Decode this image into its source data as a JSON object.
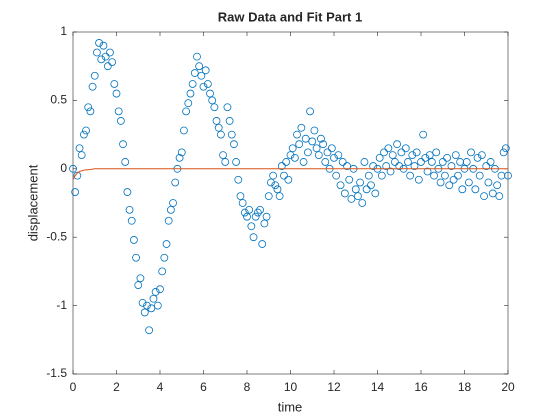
{
  "chart_data": {
    "type": "scatter",
    "title": "Raw Data and Fit Part 1",
    "xlabel": "time",
    "ylabel": "displacement",
    "xlim": [
      0,
      20
    ],
    "ylim": [
      -1.5,
      1
    ],
    "xticks": [
      0,
      2,
      4,
      6,
      8,
      10,
      12,
      14,
      16,
      18,
      20
    ],
    "yticks": [
      -1.5,
      -1,
      -0.5,
      0,
      0.5,
      1
    ],
    "series": [
      {
        "style": "markers",
        "color": "#0072bd",
        "x": [
          0,
          0.1,
          0.2,
          0.3,
          0.4,
          0.5,
          0.6,
          0.7,
          0.8,
          0.9,
          1,
          1.1,
          1.2,
          1.3,
          1.4,
          1.5,
          1.6,
          1.7,
          1.8,
          1.9,
          2,
          2.1,
          2.2,
          2.3,
          2.4,
          2.5,
          2.6,
          2.7,
          2.8,
          2.9,
          3,
          3.1,
          3.2,
          3.3,
          3.4,
          3.5,
          3.6,
          3.7,
          3.8,
          3.9,
          4,
          4.1,
          4.2,
          4.3,
          4.4,
          4.5,
          4.6,
          4.7,
          4.8,
          4.9,
          5,
          5.1,
          5.2,
          5.3,
          5.4,
          5.5,
          5.6,
          5.7,
          5.8,
          5.9,
          6,
          6.1,
          6.2,
          6.3,
          6.4,
          6.5,
          6.6,
          6.7,
          6.8,
          6.9,
          7,
          7.1,
          7.2,
          7.3,
          7.4,
          7.5,
          7.6,
          7.7,
          7.8,
          7.9,
          8,
          8.1,
          8.2,
          8.3,
          8.4,
          8.5,
          8.6,
          8.7,
          8.8,
          8.9,
          9,
          9.1,
          9.2,
          9.3,
          9.4,
          9.5,
          9.6,
          9.7,
          9.8,
          9.9,
          10,
          10.1,
          10.2,
          10.3,
          10.4,
          10.5,
          10.6,
          10.7,
          10.8,
          10.9,
          11,
          11.1,
          11.2,
          11.3,
          11.4,
          11.5,
          11.6,
          11.7,
          11.8,
          11.9,
          12,
          12.1,
          12.2,
          12.3,
          12.4,
          12.5,
          12.6,
          12.7,
          12.8,
          12.9,
          13,
          13.1,
          13.2,
          13.3,
          13.4,
          13.5,
          13.6,
          13.7,
          13.8,
          13.9,
          14,
          14.1,
          14.2,
          14.3,
          14.4,
          14.5,
          14.6,
          14.7,
          14.8,
          14.9,
          15,
          15.1,
          15.2,
          15.3,
          15.4,
          15.5,
          15.6,
          15.7,
          15.8,
          15.9,
          16,
          16.1,
          16.2,
          16.3,
          16.4,
          16.5,
          16.6,
          16.7,
          16.8,
          16.9,
          17,
          17.1,
          17.2,
          17.3,
          17.4,
          17.5,
          17.6,
          17.7,
          17.8,
          17.9,
          18,
          18.1,
          18.2,
          18.3,
          18.4,
          18.5,
          18.6,
          18.7,
          18.8,
          18.9,
          19,
          19.1,
          19.2,
          19.3,
          19.4,
          19.5,
          19.6,
          19.7,
          19.8,
          19.9,
          20
        ],
        "values": [
          0.0,
          -0.17,
          -0.05,
          0.15,
          0.1,
          0.25,
          0.28,
          0.45,
          0.42,
          0.6,
          0.68,
          0.85,
          0.92,
          0.8,
          0.9,
          0.82,
          0.75,
          0.85,
          0.78,
          0.62,
          0.55,
          0.42,
          0.35,
          0.18,
          0.05,
          -0.17,
          -0.3,
          -0.38,
          -0.52,
          -0.65,
          -0.85,
          -0.8,
          -0.98,
          -1.05,
          -1.0,
          -1.18,
          -1.02,
          -0.95,
          -0.9,
          -1.0,
          -0.88,
          -0.75,
          -0.65,
          -0.55,
          -0.38,
          -0.3,
          -0.25,
          -0.1,
          0.0,
          0.08,
          0.12,
          0.28,
          0.42,
          0.48,
          0.55,
          0.62,
          0.7,
          0.82,
          0.75,
          0.68,
          0.6,
          0.72,
          0.62,
          0.55,
          0.5,
          0.45,
          0.35,
          0.3,
          0.25,
          0.1,
          0.05,
          0.45,
          0.35,
          0.25,
          0.18,
          0.05,
          -0.08,
          -0.2,
          -0.25,
          -0.32,
          -0.35,
          -0.3,
          -0.42,
          -0.5,
          -0.35,
          -0.32,
          -0.3,
          -0.55,
          -0.4,
          -0.35,
          -0.2,
          -0.1,
          -0.05,
          -0.12,
          -0.15,
          -0.2,
          0.02,
          -0.05,
          0.05,
          -0.08,
          0.1,
          0.15,
          0.08,
          0.25,
          0.18,
          0.3,
          0.05,
          0.22,
          0.12,
          0.42,
          0.2,
          0.28,
          0.15,
          0.1,
          0.22,
          0.18,
          0.05,
          0.12,
          0.0,
          0.15,
          0.08,
          -0.05,
          0.1,
          -0.12,
          0.05,
          -0.18,
          0.02,
          -0.08,
          -0.22,
          0.0,
          -0.15,
          -0.2,
          -0.1,
          -0.25,
          0.05,
          -0.15,
          -0.05,
          -0.12,
          0.02,
          -0.18,
          0.0,
          0.08,
          -0.05,
          0.12,
          0.02,
          0.15,
          -0.02,
          0.1,
          0.05,
          0.18,
          0.02,
          0.12,
          0.0,
          0.15,
          0.05,
          -0.05,
          0.1,
          0.02,
          0.12,
          -0.08,
          0.05,
          0.25,
          0.08,
          -0.02,
          0.1,
          0.05,
          -0.05,
          0.12,
          0.0,
          -0.1,
          0.05,
          -0.05,
          0.08,
          -0.12,
          0.02,
          -0.08,
          0.1,
          -0.05,
          0.05,
          -0.15,
          0.0,
          0.05,
          -0.1,
          0.12,
          0.0,
          -0.15,
          0.08,
          -0.05,
          0.1,
          -0.2,
          0.02,
          -0.1,
          0.05,
          -0.18,
          0.0,
          -0.12,
          -0.2,
          -0.05,
          0.12,
          0.15,
          -0.05
        ]
      },
      {
        "style": "line",
        "color": "#d95319",
        "x": [
          0,
          0.1,
          0.2,
          0.3,
          0.5,
          0.8,
          1,
          20
        ],
        "values": [
          -0.08,
          -0.05,
          -0.03,
          -0.02,
          -0.01,
          -0.005,
          0,
          0
        ]
      }
    ]
  }
}
